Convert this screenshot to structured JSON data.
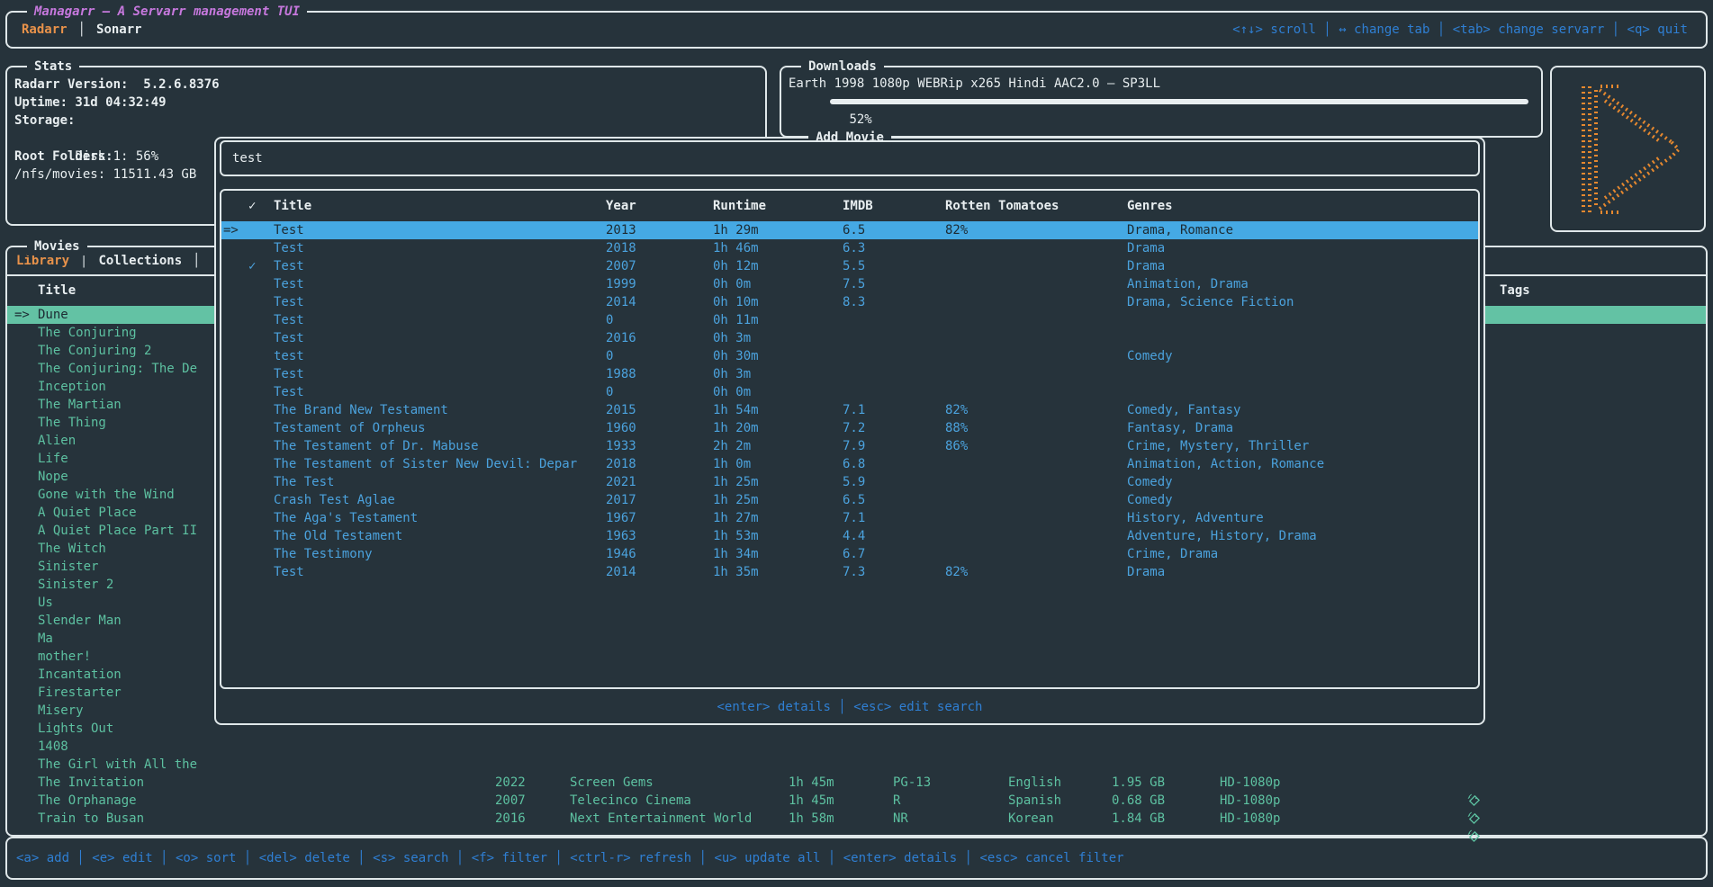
{
  "colors": {
    "background": "#26333b",
    "border": "#dfe7e9",
    "accent_orange": "#e8924a",
    "logo_orange": "#e5882f",
    "magenta": "#c678dd",
    "key_blue": "#2f7fd3",
    "row_blue": "#4ba2dd",
    "teal": "#5dc1a1",
    "selection_teal_bg": "#63c2a4",
    "selection_blue_bg": "#45a9e4",
    "selection_text": "#1d2b33",
    "white": "#e8eef0",
    "progress_blue": "#3ba0e0"
  },
  "icons": {
    "selector": "=>",
    "check": "✓",
    "divider": "│",
    "tag": "tag-icon",
    "logo": "managarr-play-logo"
  },
  "header": {
    "title": "Managarr – A Servarr management TUI",
    "tabs": [
      {
        "label": "Radarr",
        "active": true
      },
      {
        "label": "Sonarr",
        "active": false
      }
    ],
    "shortcuts": "<↑↓> scroll │ ↔ change tab │ <tab> change servarr │ <q> quit"
  },
  "stats": {
    "title": "Stats",
    "version_line": "Radarr Version:  5.2.6.8376",
    "uptime_line": "Uptime: 31d 04:32:49",
    "storage_label": "Storage:",
    "disk_line": "Disk 1: 56%",
    "disk_percent": 56,
    "root_folders_label": "Root Folders:",
    "root_folder_line": "/nfs/movies: 11511.43 GB"
  },
  "downloads": {
    "title": "Downloads",
    "item_name": "Earth 1998 1080p WEBRip x265 Hindi AAC2.0 – SP3LL",
    "percent_label": "52%",
    "percent": 52
  },
  "movies": {
    "title": "Movies",
    "tabs": [
      {
        "label": "Library",
        "active": true
      },
      {
        "label": "Collections",
        "active": false
      }
    ],
    "title_column": "Title",
    "tags_column": "Tags",
    "items": [
      {
        "title": "Dune",
        "selected": true
      },
      {
        "title": "The Conjuring"
      },
      {
        "title": "The Conjuring 2"
      },
      {
        "title": "The Conjuring: The De"
      },
      {
        "title": "Inception"
      },
      {
        "title": "The Martian"
      },
      {
        "title": "The Thing"
      },
      {
        "title": "Alien"
      },
      {
        "title": "Life"
      },
      {
        "title": "Nope"
      },
      {
        "title": "Gone with the Wind"
      },
      {
        "title": "A Quiet Place"
      },
      {
        "title": "A Quiet Place Part II"
      },
      {
        "title": "The Witch"
      },
      {
        "title": "Sinister"
      },
      {
        "title": "Sinister 2"
      },
      {
        "title": "Us"
      },
      {
        "title": "Slender Man"
      },
      {
        "title": "Ma"
      },
      {
        "title": "mother!"
      },
      {
        "title": "Incantation"
      },
      {
        "title": "Firestarter"
      },
      {
        "title": "Misery"
      },
      {
        "title": "Lights Out"
      },
      {
        "title": "1408"
      },
      {
        "title": "The Girl with All the"
      },
      {
        "title": "The Invitation",
        "year": "2022",
        "studio": "Screen Gems",
        "runtime": "1h 45m",
        "cert": "PG-13",
        "lang": "English",
        "size": "1.95 GB",
        "quality": "HD-1080p",
        "tagged": true
      },
      {
        "title": "The Orphanage",
        "year": "2007",
        "studio": "Telecinco Cinema",
        "runtime": "1h 45m",
        "cert": "R",
        "lang": "Spanish",
        "size": "0.68 GB",
        "quality": "HD-1080p",
        "tagged": true
      },
      {
        "title": "Train to Busan",
        "year": "2016",
        "studio": "Next Entertainment World",
        "runtime": "1h 58m",
        "cert": "NR",
        "lang": "Korean",
        "size": "1.84 GB",
        "quality": "HD-1080p",
        "tagged": true
      }
    ]
  },
  "add_movie": {
    "title": "Add Movie",
    "search_value": "test",
    "columns": {
      "check": "✓",
      "title": "Title",
      "year": "Year",
      "runtime": "Runtime",
      "imdb": "IMDB",
      "rotten_tomatoes": "Rotten Tomatoes",
      "genres": "Genres"
    },
    "rows": [
      {
        "selected": true,
        "title": "Test",
        "year": "2013",
        "runtime": "1h 29m",
        "imdb": "6.5",
        "rt": "82%",
        "genres": "Drama, Romance"
      },
      {
        "title": "Test",
        "year": "2018",
        "runtime": "1h 46m",
        "imdb": "6.3",
        "genres": "Drama"
      },
      {
        "checked": true,
        "title": "Test",
        "year": "2007",
        "runtime": "0h 12m",
        "imdb": "5.5",
        "genres": "Drama"
      },
      {
        "title": "Test",
        "year": "1999",
        "runtime": "0h 0m",
        "imdb": "7.5",
        "genres": "Animation, Drama"
      },
      {
        "title": "Test",
        "year": "2014",
        "runtime": "0h 10m",
        "imdb": "8.3",
        "genres": "Drama, Science Fiction"
      },
      {
        "title": "Test",
        "year": "0",
        "runtime": "0h 11m"
      },
      {
        "title": "Test",
        "year": "2016",
        "runtime": "0h 3m"
      },
      {
        "title": "test",
        "year": "0",
        "runtime": "0h 30m",
        "genres": "Comedy"
      },
      {
        "title": "Test",
        "year": "1988",
        "runtime": "0h 3m"
      },
      {
        "title": "Test",
        "year": "0",
        "runtime": "0h 0m"
      },
      {
        "title": "The Brand New Testament",
        "year": "2015",
        "runtime": "1h 54m",
        "imdb": "7.1",
        "rt": "82%",
        "genres": "Comedy, Fantasy"
      },
      {
        "title": "Testament of Orpheus",
        "year": "1960",
        "runtime": "1h 20m",
        "imdb": "7.2",
        "rt": "88%",
        "genres": "Fantasy, Drama"
      },
      {
        "title": "The Testament of Dr. Mabuse",
        "year": "1933",
        "runtime": "2h 2m",
        "imdb": "7.9",
        "rt": "86%",
        "genres": "Crime, Mystery, Thriller"
      },
      {
        "title": "The Testament of Sister New Devil: Depar",
        "year": "2018",
        "runtime": "1h 0m",
        "imdb": "6.8",
        "genres": "Animation, Action, Romance"
      },
      {
        "title": "The Test",
        "year": "2021",
        "runtime": "1h 25m",
        "imdb": "5.9",
        "genres": "Comedy"
      },
      {
        "title": "Crash Test Aglae",
        "year": "2017",
        "runtime": "1h 25m",
        "imdb": "6.5",
        "genres": "Comedy"
      },
      {
        "title": "The Aga's Testament",
        "year": "1967",
        "runtime": "1h 27m",
        "imdb": "7.1",
        "genres": "History, Adventure"
      },
      {
        "title": "The Old Testament",
        "year": "1963",
        "runtime": "1h 53m",
        "imdb": "4.4",
        "genres": "Adventure, History, Drama"
      },
      {
        "title": "The Testimony",
        "year": "1946",
        "runtime": "1h 34m",
        "imdb": "6.7",
        "genres": "Crime, Drama"
      },
      {
        "title": "Test",
        "year": "2014",
        "runtime": "1h 35m",
        "imdb": "7.3",
        "rt": "82%",
        "genres": "Drama"
      }
    ],
    "help": "<enter> details │ <esc> edit search"
  },
  "bottom_bar": {
    "shortcuts": "<a> add │ <e> edit │ <o> sort │ <del> delete │ <s> search │ <f> filter │ <ctrl-r> refresh │ <u> update all │ <enter> details │ <esc> cancel filter"
  }
}
